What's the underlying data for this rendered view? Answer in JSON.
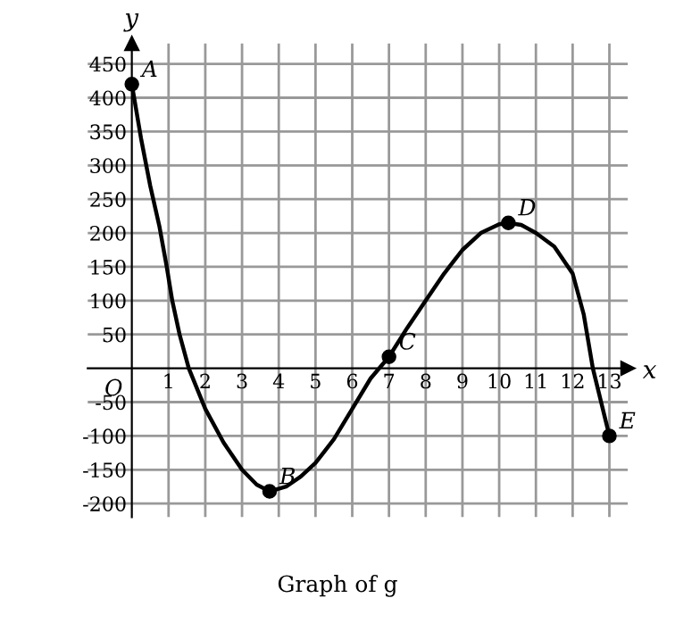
{
  "chart_data": {
    "type": "line",
    "title": "Graph of g",
    "xlabel": "x",
    "ylabel": "y",
    "series": [
      {
        "color": "#000000",
        "x": [
          0,
          0.25,
          0.5,
          0.75,
          0.95,
          1.1,
          1.3,
          1.55,
          2,
          2.5,
          3,
          3.4,
          3.75,
          4.2,
          4.6,
          5,
          5.5,
          6,
          6.5,
          7,
          7.5,
          8,
          8.5,
          9,
          9.5,
          10,
          10.25,
          10.6,
          11,
          11.5,
          12,
          12.3,
          12.55,
          13
        ],
        "values": [
          420,
          340,
          270,
          210,
          150,
          100,
          50,
          0,
          -60,
          -110,
          -150,
          -172,
          -182,
          -175,
          -160,
          -140,
          -105,
          -60,
          -15,
          17,
          60,
          100,
          140,
          175,
          200,
          213,
          215,
          212,
          200,
          180,
          140,
          80,
          0,
          -100
        ]
      },
      {
        "type": "scatter",
        "color": "#000000",
        "marker": "circle",
        "x": [
          0,
          3.75,
          7,
          10.25,
          13
        ],
        "values": [
          420,
          -182,
          17,
          215,
          -100
        ]
      }
    ],
    "annotations": [
      {
        "text": "A",
        "x": 0,
        "y": 420
      },
      {
        "text": "B",
        "x": 3.75,
        "y": -182
      },
      {
        "text": "C",
        "x": 7,
        "y": 17
      },
      {
        "text": "D",
        "x": 10.25,
        "y": 215
      },
      {
        "text": "E",
        "x": 13,
        "y": -100
      },
      "O"
    ],
    "xlim": [
      -1.2,
      13.5
    ],
    "ylim": [
      -220,
      480
    ],
    "xticks": [
      1,
      2,
      3,
      4,
      5,
      6,
      7,
      8,
      9,
      10,
      11,
      12,
      13
    ],
    "yticks": [
      -200,
      -150,
      -100,
      -50,
      50,
      100,
      150,
      200,
      250,
      300,
      350,
      400,
      450
    ],
    "grid": true
  }
}
